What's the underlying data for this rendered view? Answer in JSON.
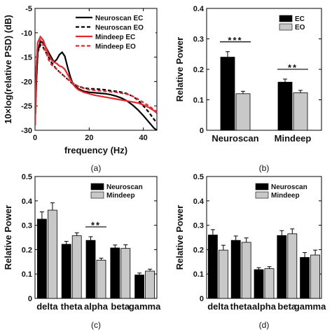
{
  "chart_data": [
    {
      "id": "a",
      "panel_label": "(a)",
      "type": "line",
      "xlabel": "frequency (Hz)",
      "ylabel": "10×log(relative PSD) (dB)",
      "xlim": [
        0,
        45
      ],
      "ylim": [
        -30,
        -5
      ],
      "xticks": [
        0,
        20,
        40
      ],
      "yticks": [
        -5,
        -10,
        -15,
        -20,
        -25,
        -30
      ],
      "legend_position": "top-right",
      "series": [
        {
          "name": "Neuroscan EC",
          "color": "#000000",
          "dash": "solid",
          "x": [
            0,
            0.5,
            1,
            2,
            3,
            4,
            5,
            6,
            7,
            8,
            9,
            10,
            11,
            12,
            13,
            14,
            15,
            16,
            18,
            20,
            22,
            24,
            26,
            28,
            30,
            32,
            34,
            36,
            38,
            40,
            42,
            44,
            45
          ],
          "y": [
            -29,
            -20,
            -14,
            -11.8,
            -12,
            -13,
            -14,
            -15,
            -16,
            -15.5,
            -14.5,
            -14,
            -14.8,
            -17,
            -19,
            -20.5,
            -21,
            -21.5,
            -22,
            -22.2,
            -22.3,
            -22.4,
            -22.5,
            -22.7,
            -23,
            -23.4,
            -24,
            -24.8,
            -25.8,
            -27,
            -28.3,
            -29.6,
            -30
          ]
        },
        {
          "name": "Neuroscan EO",
          "color": "#000000",
          "dash": "dashed",
          "x": [
            0,
            0.5,
            1,
            2,
            3,
            4,
            5,
            6,
            8,
            10,
            12,
            14,
            16,
            18,
            20,
            22,
            24,
            26,
            28,
            30,
            32,
            34,
            36,
            38,
            40,
            42,
            44,
            45
          ],
          "y": [
            -29,
            -20,
            -14,
            -12.5,
            -13,
            -14,
            -15,
            -16,
            -17.5,
            -18.5,
            -19.5,
            -20.5,
            -21,
            -21.3,
            -21.5,
            -21.5,
            -21.6,
            -21.7,
            -21.9,
            -22,
            -22.2,
            -22.5,
            -23,
            -23.8,
            -25,
            -26.3,
            -27.8,
            -28.5
          ]
        },
        {
          "name": "Mindeep EC",
          "color": "#e8262c",
          "dash": "solid",
          "x": [
            0,
            0.5,
            1,
            2,
            3,
            4,
            5,
            6,
            7,
            8,
            9,
            10,
            11,
            12,
            13,
            14,
            15,
            16,
            18,
            20,
            22,
            24,
            26,
            28,
            30,
            32,
            34,
            36,
            38,
            40,
            42,
            44,
            45
          ],
          "y": [
            -29,
            -17,
            -12,
            -10.8,
            -11.5,
            -13,
            -14.5,
            -15.5,
            -16,
            -16.3,
            -16.8,
            -17,
            -17.5,
            -18.5,
            -19.5,
            -20.5,
            -21.2,
            -21.7,
            -22.2,
            -22.5,
            -22.8,
            -23,
            -23.2,
            -23.4,
            -23.6,
            -23.8,
            -24,
            -24.2,
            -24.4,
            -24.8,
            -25.3,
            -26,
            -26.5
          ]
        },
        {
          "name": "Mindeep EO",
          "color": "#e8262c",
          "dash": "dashed",
          "x": [
            0,
            0.5,
            1,
            2,
            3,
            4,
            5,
            6,
            8,
            10,
            12,
            14,
            16,
            18,
            20,
            22,
            24,
            26,
            28,
            30,
            32,
            34,
            36,
            38,
            40,
            42,
            44,
            45
          ],
          "y": [
            -29,
            -17,
            -12,
            -11.5,
            -12.5,
            -14,
            -15.5,
            -16.5,
            -17.5,
            -18.5,
            -19.5,
            -20.3,
            -21,
            -21.4,
            -21.7,
            -21.8,
            -21.9,
            -22,
            -22.1,
            -22.2,
            -22.4,
            -22.6,
            -23,
            -23.6,
            -24.3,
            -25,
            -25.8,
            -26.2
          ]
        }
      ]
    },
    {
      "id": "b",
      "panel_label": "(b)",
      "type": "bar",
      "ylabel": "Relative Power",
      "ylim": [
        0,
        0.4
      ],
      "yticks": [
        "0",
        "0.1",
        "0.2",
        "0.3",
        "0.4"
      ],
      "categories": [
        "Neuroscan",
        "Mindeep"
      ],
      "legend_position": "top-right",
      "series": [
        {
          "name": "EC",
          "color": "#000000",
          "values": [
            0.24,
            0.158
          ],
          "errors": [
            0.018,
            0.01
          ]
        },
        {
          "name": "EO",
          "color": "#c8c8c8",
          "values": [
            0.12,
            0.123
          ],
          "errors": [
            0.008,
            0.008
          ]
        }
      ],
      "annotations": [
        {
          "text": "***",
          "category_index": 0
        },
        {
          "text": "**",
          "category_index": 1
        }
      ]
    },
    {
      "id": "c",
      "panel_label": "(c)",
      "type": "bar",
      "ylabel": "Relative Power",
      "ylim": [
        0,
        0.5
      ],
      "yticks": [
        "0",
        "0.1",
        "0.2",
        "0.3",
        "0.4",
        "0.5"
      ],
      "categories": [
        "delta",
        "theta",
        "alpha",
        "beta",
        "gamma"
      ],
      "legend_position": "top-right",
      "series": [
        {
          "name": "Neuroscan",
          "color": "#000000",
          "values": [
            0.325,
            0.222,
            0.238,
            0.207,
            0.096
          ],
          "errors": [
            0.03,
            0.012,
            0.015,
            0.012,
            0.008
          ]
        },
        {
          "name": "Mindeep",
          "color": "#c8c8c8",
          "values": [
            0.362,
            0.257,
            0.157,
            0.205,
            0.112
          ],
          "errors": [
            0.03,
            0.012,
            0.008,
            0.015,
            0.008
          ]
        }
      ],
      "annotations": [
        {
          "text": "**",
          "category_index": 2
        }
      ]
    },
    {
      "id": "d",
      "panel_label": "(d)",
      "type": "bar",
      "ylabel": "Relative Power",
      "ylim": [
        0,
        0.5
      ],
      "yticks": [
        "0",
        "0.1",
        "0.2",
        "0.3",
        "0.4",
        "0.5"
      ],
      "categories": [
        "delta",
        "theta",
        "alpha",
        "beta",
        "gamma"
      ],
      "legend_position": "top-right",
      "series": [
        {
          "name": "Neuroscan",
          "color": "#000000",
          "values": [
            0.26,
            0.238,
            0.118,
            0.258,
            0.168
          ],
          "errors": [
            0.022,
            0.018,
            0.008,
            0.02,
            0.02
          ]
        },
        {
          "name": "Mindeep",
          "color": "#c8c8c8",
          "values": [
            0.198,
            0.23,
            0.122,
            0.265,
            0.178
          ],
          "errors": [
            0.02,
            0.018,
            0.008,
            0.02,
            0.02
          ]
        }
      ],
      "annotations": []
    }
  ]
}
